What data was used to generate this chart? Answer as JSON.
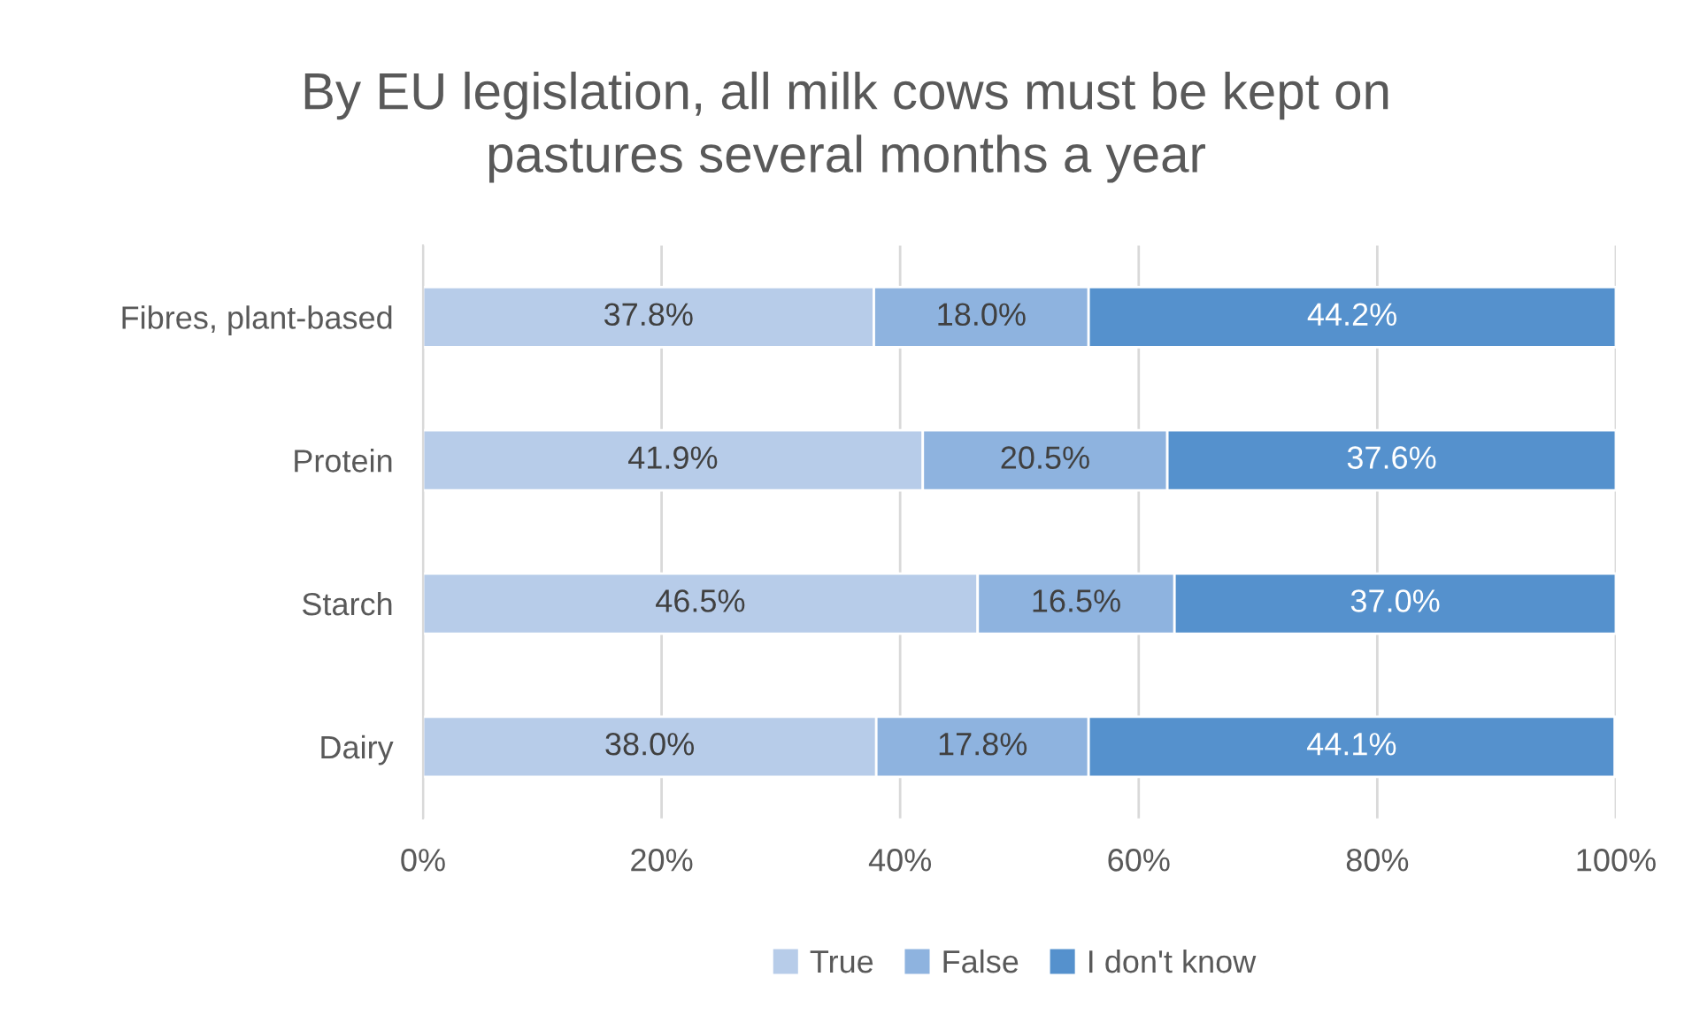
{
  "chart_data": {
    "type": "bar",
    "orientation": "horizontal",
    "stacked": true,
    "title": "By EU legislation, all milk cows must be kept on\npastures several months a year",
    "categories": [
      "Fibres, plant-based",
      "Protein",
      "Starch",
      "Dairy"
    ],
    "series": [
      {
        "name": "True",
        "color": "#b7cce9",
        "values": [
          37.8,
          41.9,
          46.5,
          38.0
        ],
        "value_labels": [
          "37.8%",
          "41.9%",
          "46.5%",
          "38.0%"
        ]
      },
      {
        "name": "False",
        "color": "#8eb3df",
        "values": [
          18.0,
          20.5,
          16.5,
          17.8
        ],
        "value_labels": [
          "18.0%",
          "20.5%",
          "16.5%",
          "17.8%"
        ]
      },
      {
        "name": "I don't know",
        "color": "#5591cd",
        "values": [
          44.2,
          37.6,
          37.0,
          44.1
        ],
        "value_labels": [
          "44.2%",
          "37.6%",
          "37.0%",
          "44.1%"
        ]
      }
    ],
    "xlim": [
      0,
      100
    ],
    "xticks": [
      {
        "value": 0,
        "label": "0%"
      },
      {
        "value": 20,
        "label": "20%"
      },
      {
        "value": 40,
        "label": "40%"
      },
      {
        "value": 60,
        "label": "60%"
      },
      {
        "value": 80,
        "label": "80%"
      },
      {
        "value": 100,
        "label": "100%"
      }
    ],
    "grid": "x",
    "legend": "bottom"
  }
}
